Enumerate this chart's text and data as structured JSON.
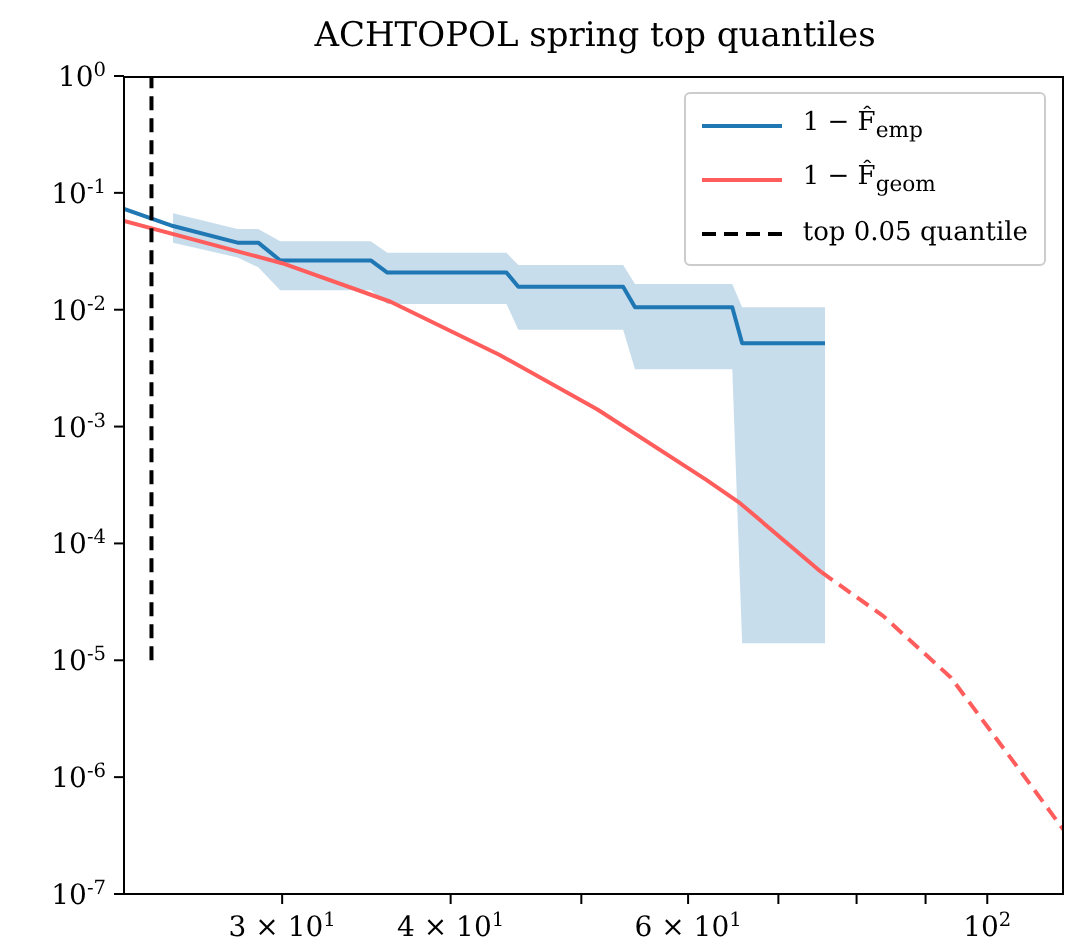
{
  "chart_data": {
    "type": "line",
    "title": "ACHTOPOL spring top quantiles",
    "log": "xy",
    "grid": false,
    "legend": "top right",
    "marker": "none",
    "xlim": [
      22.9,
      114
    ],
    "xticks": [
      {
        "value": 30,
        "label": "3 × 10$^{1}$"
      },
      {
        "value": 40,
        "label": "4 × 10$^{1}$"
      },
      {
        "value": 50,
        "label": null
      },
      {
        "value": 60,
        "label": "6 × 10$^{1}$"
      },
      {
        "value": 70,
        "label": null
      },
      {
        "value": 80,
        "label": null
      },
      {
        "value": 90,
        "label": null
      },
      {
        "value": 100,
        "label": "10$^{2}$"
      }
    ],
    "ylim": [
      1e-07,
      1
    ],
    "yticks": [
      {
        "value": 1e-07,
        "label": "10$^{-7}$"
      },
      {
        "value": 1e-06,
        "label": "10$^{-6}$"
      },
      {
        "value": 1e-05,
        "label": "10$^{-5}$"
      },
      {
        "value": 0.0001,
        "label": "10$^{-4}$"
      },
      {
        "value": 0.001,
        "label": "10$^{-3}$"
      },
      {
        "value": 0.01,
        "label": "10$^{-2}$"
      },
      {
        "value": 0.1,
        "label": "10$^{-1}$"
      },
      {
        "value": 1,
        "label": "10$^{0}$"
      }
    ],
    "series": [
      {
        "name": "1 − F̂$_{emp}$",
        "color": "#1f77b4",
        "line_style": "solid",
        "x": [
          22.9,
          24.9,
          27.8,
          28.8,
          29.9,
          34.9,
          35.9,
          44.0,
          44.9,
          53.7,
          54.8,
          64.7,
          65.8,
          75.8
        ],
        "values": [
          0.073,
          0.052,
          0.0375,
          0.0375,
          0.0264,
          0.0264,
          0.0208,
          0.0208,
          0.0157,
          0.0157,
          0.0105,
          0.0105,
          0.00516,
          0.00516
        ],
        "lower": [
          null,
          0.0375,
          0.028,
          0.0231,
          0.0147,
          0.0147,
          0.0112,
          0.0112,
          0.00675,
          0.00675,
          0.0031,
          0.0031,
          1.4e-05,
          1.4e-05
        ],
        "upper": [
          null,
          0.067,
          0.049,
          0.049,
          0.0386,
          0.0386,
          0.0307,
          0.0307,
          0.0241,
          0.0241,
          0.0166,
          0.0166,
          0.0105,
          0.0105
        ]
      },
      {
        "name": "1 − F̂$_{geom}$",
        "color": "#ff5c5c",
        "line_style": "solid",
        "x": [
          22.9,
          30.0,
          36.1,
          43.5,
          51.4,
          61.9,
          65.6,
          75.3
        ],
        "values": [
          0.0575,
          0.025,
          0.0117,
          0.0041,
          0.0014,
          0.00035,
          0.00022,
          5.7e-05
        ]
      },
      {
        "color": "#ff5c5c",
        "line_style": "dashed",
        "x": [
          75.3,
          83.7,
          94.0,
          105.4,
          114
        ],
        "values": [
          5.7e-05,
          2.4e-05,
          7.1e-06,
          1.2e-06,
          3.5e-07
        ]
      },
      {
        "name": "top 0.05 quantile",
        "color": "#000000",
        "line_style": "dashed",
        "x": [
          24,
          24
        ],
        "values": [
          1e-05,
          1
        ]
      }
    ]
  }
}
